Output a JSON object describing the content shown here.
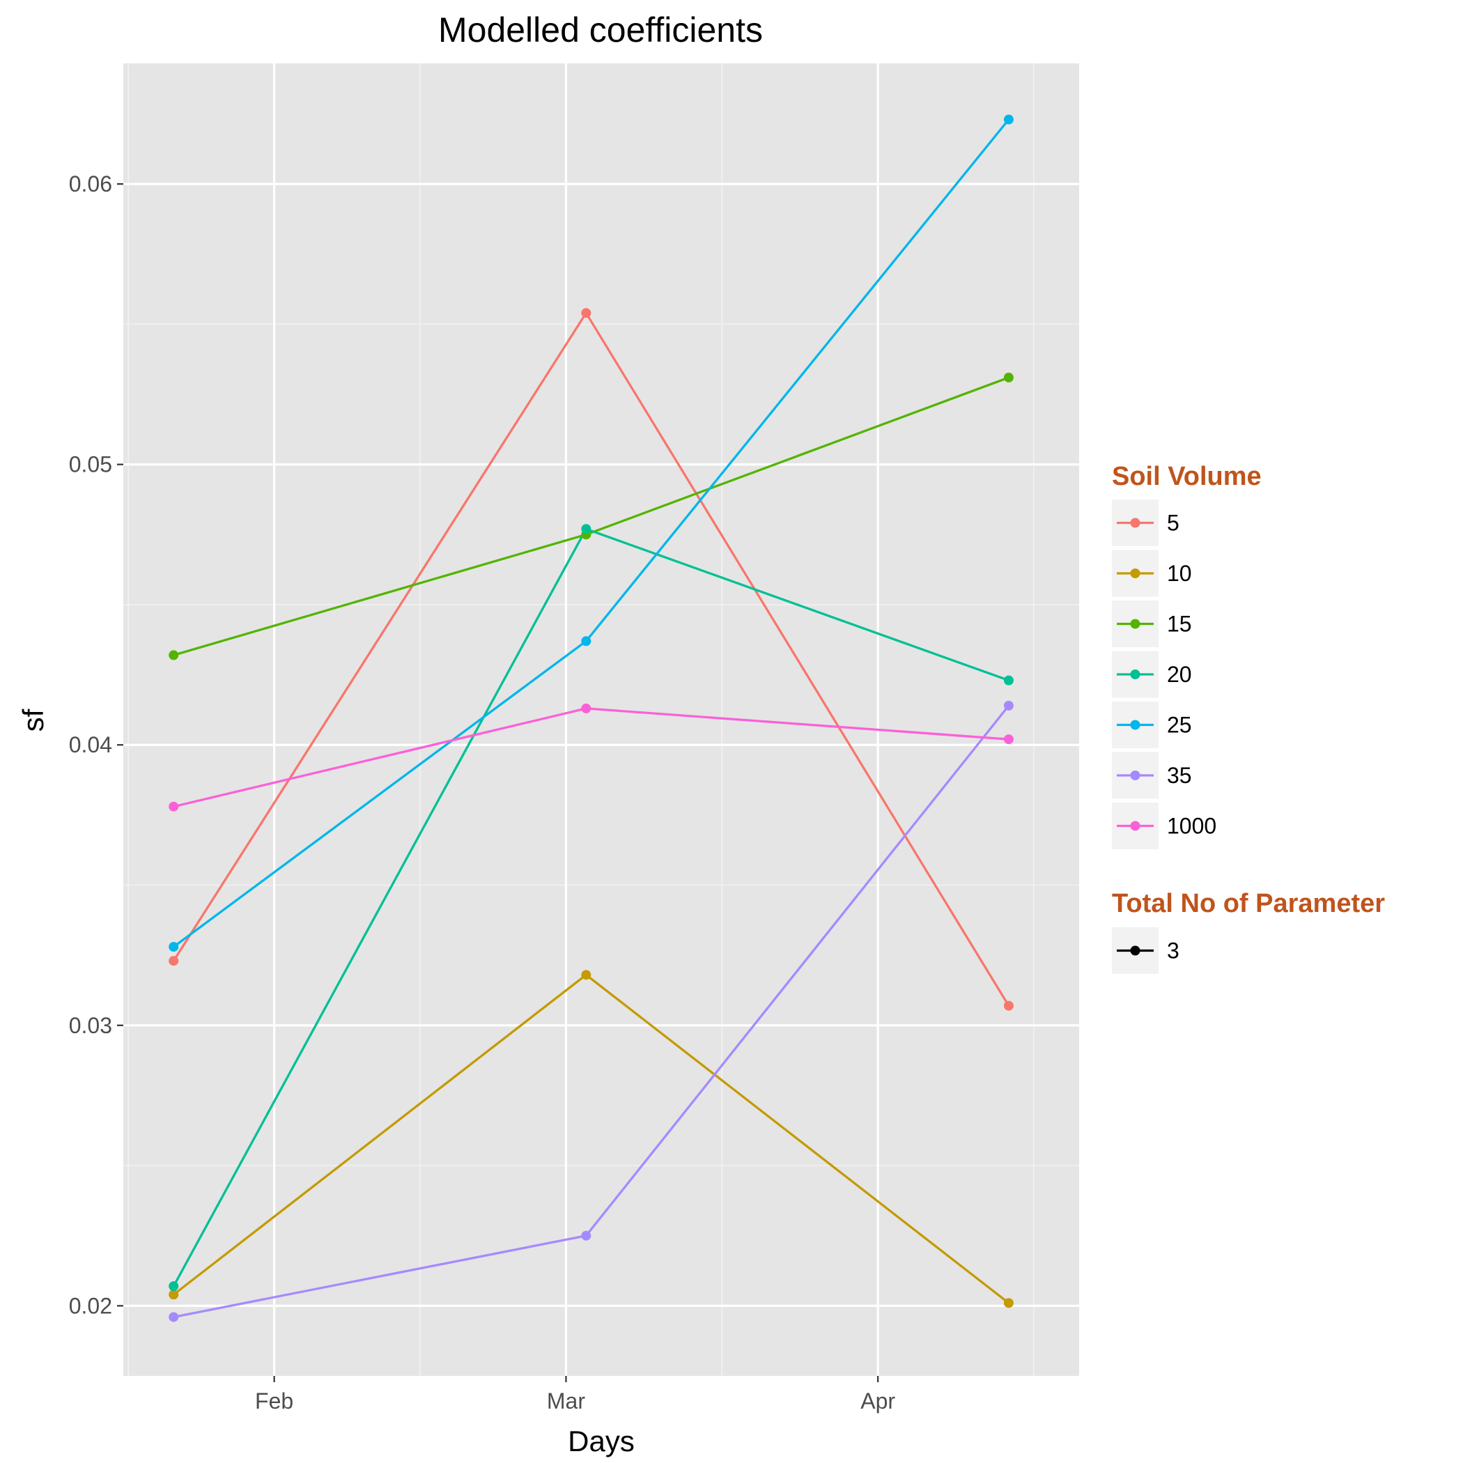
{
  "chart_data": {
    "type": "line",
    "title": "Modelled coefficients",
    "xlabel": "Days",
    "ylabel": "sf",
    "x_type": "date",
    "xlim": [
      "2016-01-17",
      "2016-04-21"
    ],
    "ylim": [
      0.0175,
      0.0643
    ],
    "x_ticks": [
      {
        "date": "2016-02-01",
        "label": "Feb"
      },
      {
        "date": "2016-03-01",
        "label": "Mar"
      },
      {
        "date": "2016-04-01",
        "label": "Apr"
      }
    ],
    "y_ticks": [
      {
        "value": 0.02,
        "label": "0.02"
      },
      {
        "value": 0.03,
        "label": "0.03"
      },
      {
        "value": 0.04,
        "label": "0.04"
      },
      {
        "value": 0.05,
        "label": "0.05"
      },
      {
        "value": 0.06,
        "label": "0.06"
      }
    ],
    "grid": true,
    "legend_position": "right",
    "legend_color_title": "Soil Volume",
    "legend_shape_title": "Total No of Parameter",
    "legend_shape_labels": [
      "3"
    ],
    "series": [
      {
        "name": "5",
        "color": "#F8766D",
        "points": [
          {
            "x": "2016-01-22",
            "y": 0.0323
          },
          {
            "x": "2016-03-03",
            "y": 0.0554
          },
          {
            "x": "2016-04-14",
            "y": 0.0307
          }
        ]
      },
      {
        "name": "10",
        "color": "#C49A00",
        "points": [
          {
            "x": "2016-01-22",
            "y": 0.0204
          },
          {
            "x": "2016-03-03",
            "y": 0.0318
          },
          {
            "x": "2016-04-14",
            "y": 0.0201
          }
        ]
      },
      {
        "name": "15",
        "color": "#53B400",
        "points": [
          {
            "x": "2016-01-22",
            "y": 0.0432
          },
          {
            "x": "2016-03-03",
            "y": 0.0475
          },
          {
            "x": "2016-04-14",
            "y": 0.0531
          }
        ]
      },
      {
        "name": "20",
        "color": "#00C094",
        "points": [
          {
            "x": "2016-01-22",
            "y": 0.0207
          },
          {
            "x": "2016-03-03",
            "y": 0.0477
          },
          {
            "x": "2016-04-14",
            "y": 0.0423
          }
        ]
      },
      {
        "name": "25",
        "color": "#00B6EB",
        "points": [
          {
            "x": "2016-01-22",
            "y": 0.0328
          },
          {
            "x": "2016-03-03",
            "y": 0.0437
          },
          {
            "x": "2016-04-14",
            "y": 0.0623
          }
        ]
      },
      {
        "name": "35",
        "color": "#A58AFF",
        "points": [
          {
            "x": "2016-01-22",
            "y": 0.0196
          },
          {
            "x": "2016-03-03",
            "y": 0.0225
          },
          {
            "x": "2016-04-14",
            "y": 0.0414
          }
        ]
      },
      {
        "name": "1000",
        "color": "#FB61D7",
        "points": [
          {
            "x": "2016-01-22",
            "y": 0.0378
          },
          {
            "x": "2016-03-03",
            "y": 0.0413
          },
          {
            "x": "2016-04-14",
            "y": 0.0402
          }
        ]
      }
    ]
  }
}
